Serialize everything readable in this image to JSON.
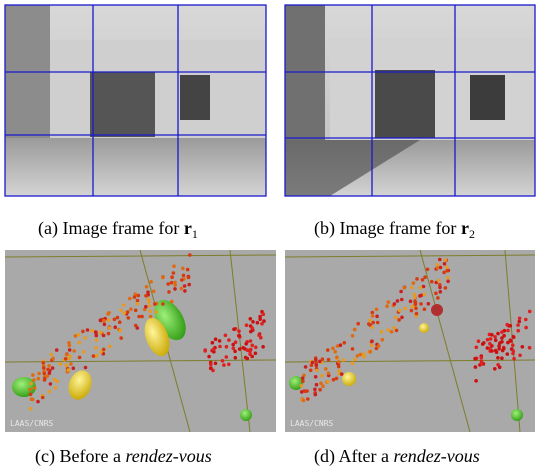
{
  "figures": [
    {
      "label": "(a)",
      "caption": "Image frame for",
      "symbol": "r",
      "subscript": "1"
    },
    {
      "label": "(b)",
      "caption": "Image frame for",
      "symbol": "r",
      "subscript": "2"
    },
    {
      "label": "(c)",
      "caption": "Before a",
      "emphasis": "rendez-vous",
      "watermark": "LAAS/CNRS"
    },
    {
      "label": "(d)",
      "caption": "After a",
      "emphasis": "rendez-vous",
      "watermark": "LAAS/CNRS"
    }
  ]
}
